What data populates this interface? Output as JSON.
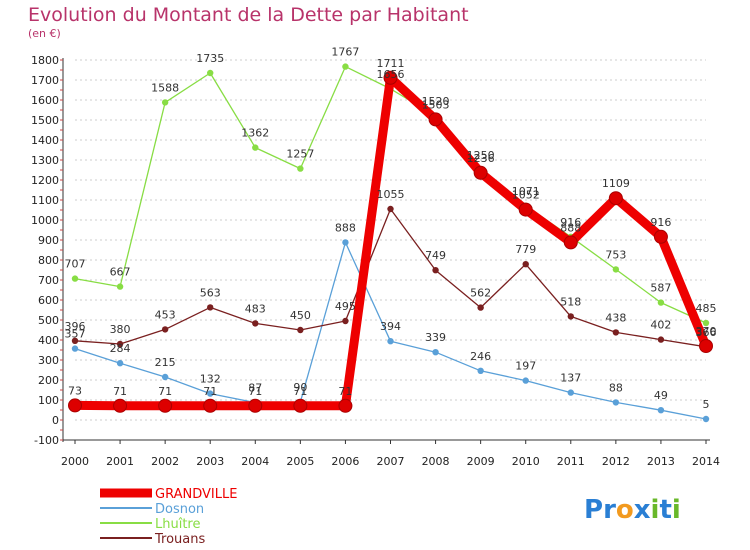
{
  "chart_data": {
    "type": "line",
    "title": "Evolution du Montant de la Dette par Habitant",
    "subtitle": "(en €)",
    "x": [
      "2000",
      "2001",
      "2002",
      "2003",
      "2004",
      "2005",
      "2006",
      "2007",
      "2008",
      "2009",
      "2010",
      "2011",
      "2012",
      "2013",
      "2014"
    ],
    "ylim": [
      -100,
      1800
    ],
    "yticks": [
      -100,
      0,
      100,
      200,
      300,
      400,
      500,
      600,
      700,
      800,
      900,
      1000,
      1100,
      1200,
      1300,
      1400,
      1500,
      1600,
      1700,
      1800
    ],
    "grid": "dashed horizontal",
    "legend_position": "bottom-left",
    "series": [
      {
        "name": "GRANDVILLE",
        "color": "#ee0000",
        "values": [
          73,
          71,
          71,
          71,
          71,
          71,
          71,
          1711,
          1503,
          1236,
          1052,
          888,
          1109,
          916,
          370
        ],
        "labels": [
          "73",
          "71",
          "71",
          "71",
          "71",
          "71",
          "71",
          "1711",
          "1503",
          "1236",
          "1052",
          "888",
          "1109",
          "916",
          "370"
        ]
      },
      {
        "name": "Dosnon",
        "color": "#5aa0d8",
        "values": [
          357,
          284,
          215,
          132,
          87,
          90,
          888,
          394,
          339,
          246,
          197,
          137,
          88,
          49,
          5
        ],
        "labels": [
          "357",
          "284",
          "215",
          "132",
          "87",
          "90",
          "888",
          "394",
          "339",
          "246",
          "197",
          "137",
          "88",
          "49",
          "5"
        ]
      },
      {
        "name": "Lhuître",
        "color": "#88dd44",
        "values": [
          707,
          667,
          1588,
          1735,
          1362,
          1257,
          1767,
          1656,
          1520,
          1250,
          1071,
          916,
          753,
          587,
          485
        ],
        "labels": [
          "707",
          "667",
          "1588",
          "1735",
          "1362",
          "1257",
          "1767",
          "1656",
          "1520",
          "1250",
          "1071",
          "916",
          "753",
          "587",
          "485"
        ]
      },
      {
        "name": "Trouans",
        "color": "#7a2020",
        "values": [
          396,
          380,
          453,
          563,
          483,
          450,
          495,
          1055,
          749,
          562,
          779,
          518,
          438,
          402,
          366
        ],
        "labels": [
          "396",
          "380",
          "453",
          "563",
          "483",
          "450",
          "495",
          "1055",
          "749",
          "562",
          "779",
          "518",
          "438",
          "402",
          "366"
        ]
      }
    ]
  },
  "logo": {
    "text": "Proxiti",
    "letters": [
      "P",
      "r",
      "o",
      "x",
      "i",
      "t",
      "i"
    ],
    "colors": [
      "#2a7fd4",
      "#2a7fd4",
      "#f29a1f",
      "#2a7fd4",
      "#69b82a",
      "#2a7fd4",
      "#69b82a"
    ]
  }
}
